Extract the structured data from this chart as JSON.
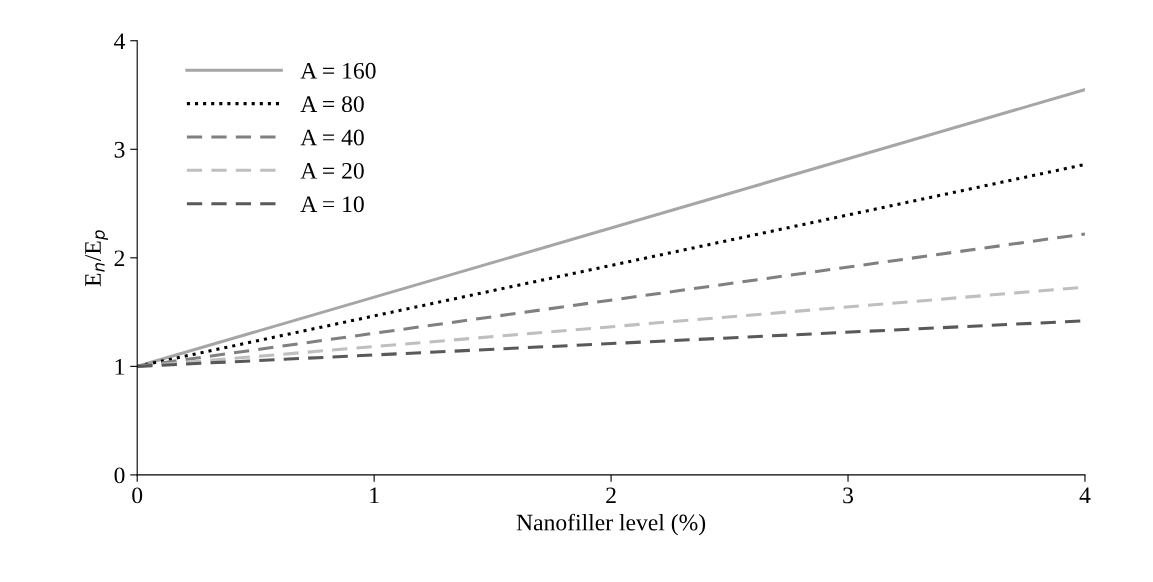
{
  "chart_data": {
    "type": "line",
    "xlabel": "Nanofiller level (%)",
    "ylabel": "E$_{n}$/E$_{p}$",
    "x": [
      0,
      4
    ],
    "xlim": [
      0,
      4
    ],
    "xticks": [
      0,
      1,
      2,
      3,
      4
    ],
    "ylim": [
      0,
      4
    ],
    "yticks": [
      0,
      1,
      2,
      3,
      4
    ],
    "grid": false,
    "legend": "top left",
    "marker": "none",
    "series": [
      {
        "name": "A = 160",
        "color": "#a6a6a6",
        "line_style": "solid",
        "values": [
          1,
          3.55
        ]
      },
      {
        "name": "A = 80",
        "color": "#000000",
        "line_style": "dotted",
        "values": [
          1,
          2.86
        ]
      },
      {
        "name": "A = 40",
        "color": "#808080",
        "line_style": "dashed",
        "values": [
          1,
          2.22
        ]
      },
      {
        "name": "A = 20",
        "color": "#bfbfbf",
        "line_style": "dashed",
        "values": [
          1,
          1.73
        ]
      },
      {
        "name": "A = 10",
        "color": "#595959",
        "line_style": "dashed",
        "values": [
          1,
          1.42
        ]
      }
    ]
  }
}
